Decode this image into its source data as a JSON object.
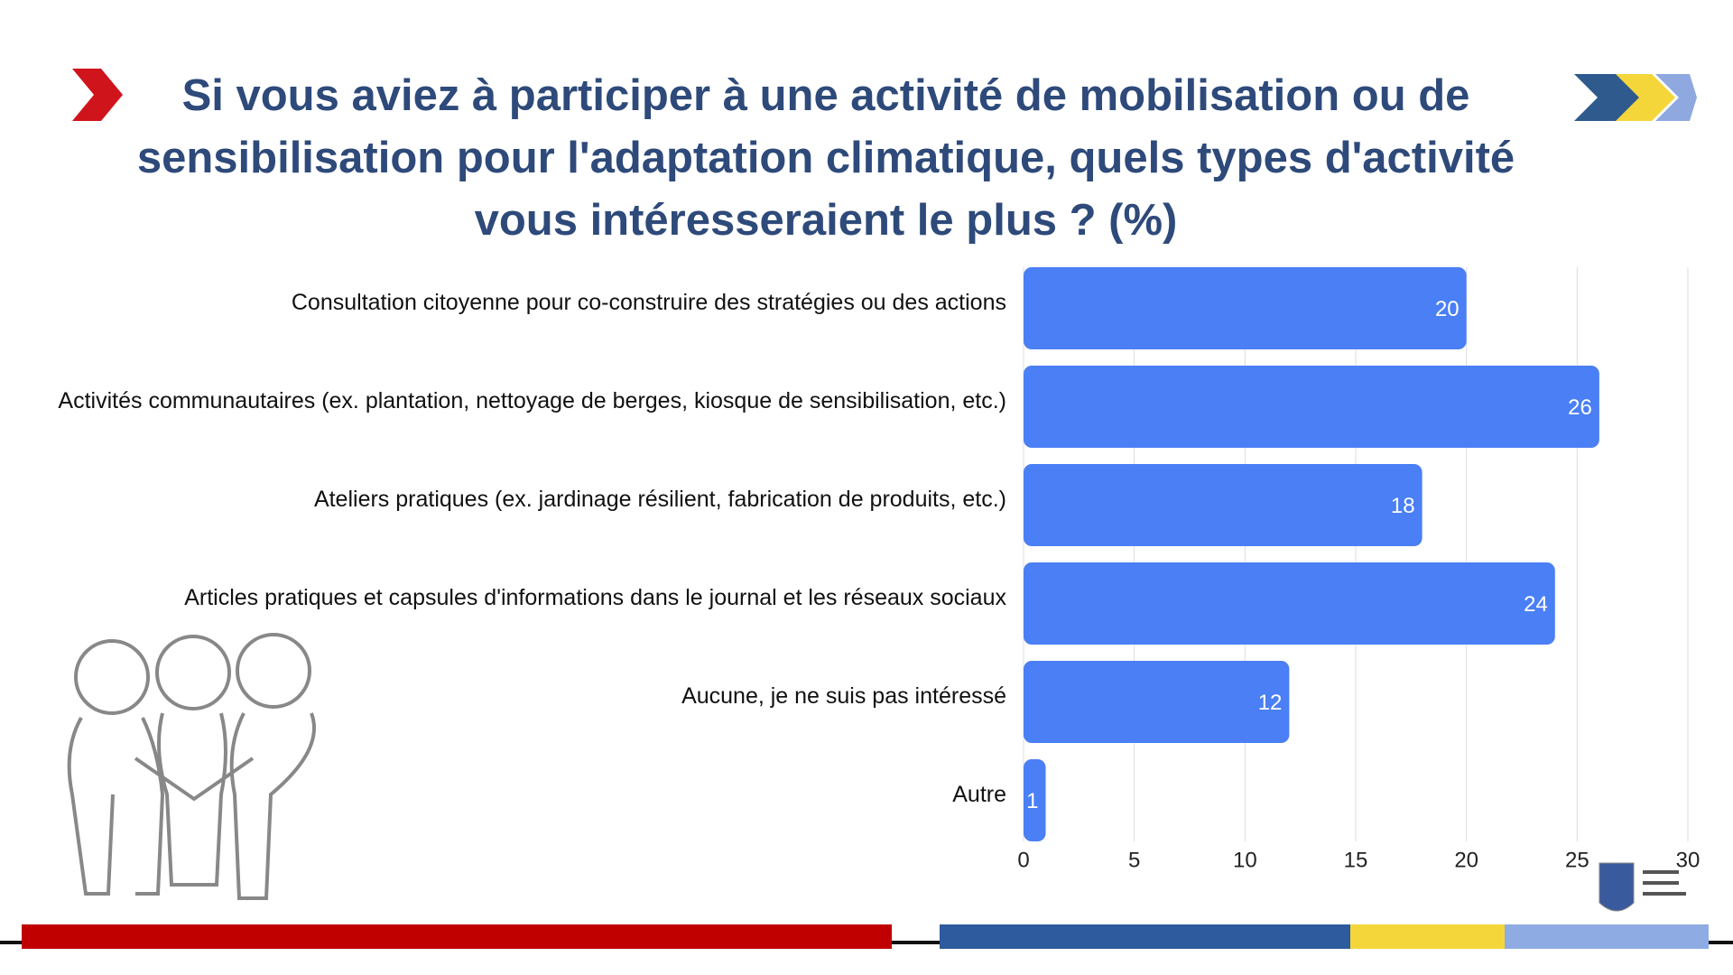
{
  "chart_data": {
    "type": "bar",
    "orientation": "horizontal",
    "title": "Si vous aviez à participer à une activité de mobilisation ou de sensibilisation pour l'adaptation climatique, quels types d'activité vous intéresseraient le plus ? (%)",
    "categories": [
      "Consultation citoyenne pour co-construire des stratégies ou des actions",
      "Activités communautaires (ex. plantation, nettoyage de berges, kiosque de sensibilisation, etc.)",
      "Ateliers pratiques (ex. jardinage résilient, fabrication de produits, etc.)",
      "Articles pratiques et capsules d'informations dans le journal et les réseaux sociaux",
      "Aucune, je ne suis pas intéressé",
      "Autre"
    ],
    "values": [
      20,
      26,
      18,
      24,
      12,
      1
    ],
    "color": "#4a7ff5",
    "xlim": [
      0,
      30
    ],
    "xticks": [
      0,
      5,
      10,
      15,
      20,
      25,
      30
    ],
    "grid": true
  }
}
